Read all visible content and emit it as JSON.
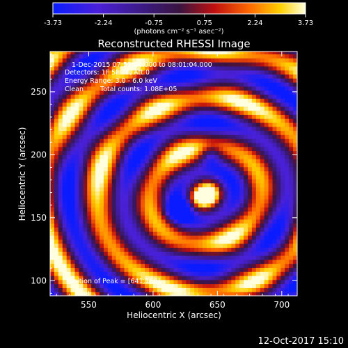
{
  "chart_data": {
    "type": "heatmap",
    "title": "Reconstructed RHESSI Image",
    "xlabel": "Heliocentric X (arcsec)",
    "ylabel": "Heliocentric Y (arcsec)",
    "xlim": [
      520,
      712
    ],
    "ylim": [
      88,
      282
    ],
    "x_ticks": [
      550,
      600,
      650,
      700
    ],
    "y_ticks": [
      100,
      150,
      200,
      250
    ],
    "colorbar": {
      "min": -3.73,
      "max": 3.73,
      "ticks": [
        "-3.73",
        "-2.24",
        "-0.75",
        "0.75",
        "2.24",
        "3.73"
      ],
      "unit_label": "(photons cm⁻² s⁻¹ asec⁻²)"
    },
    "annotations": {
      "time_range": "1-Dec-2015 07:51:04.000 to 08:01:04.000",
      "detectors": "Detectors: 1F 5F 7F, Att 0",
      "energy": "Energy Range: 3.0 - 6.0 keV",
      "clean": "Clean",
      "total_counts": "Total counts: 1.08E+05",
      "peak": "Position of Peak = [641,168]"
    },
    "peak_position": [
      641,
      168
    ],
    "grid": false
  },
  "footer": {
    "datetime": "12-Oct-2017 15:10"
  }
}
